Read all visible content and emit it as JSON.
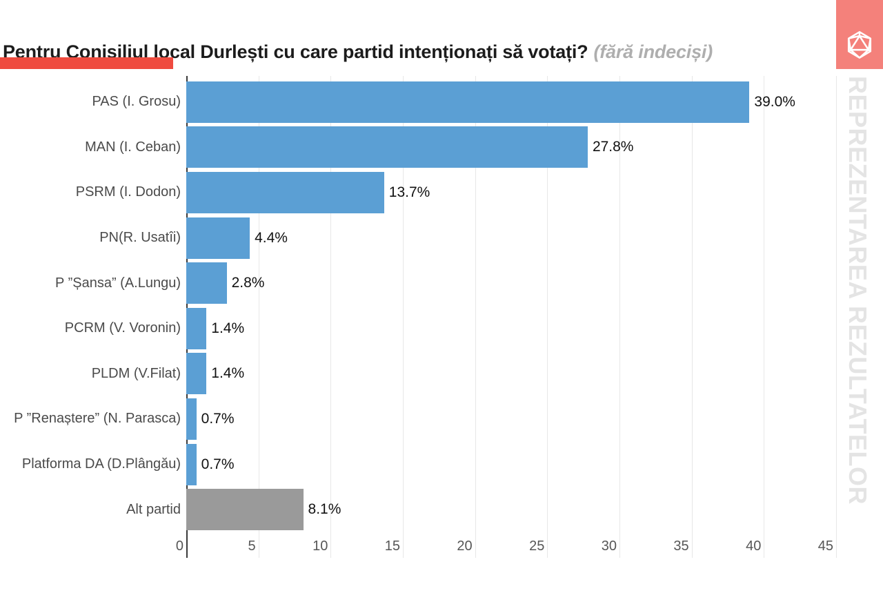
{
  "header": {
    "title": "Pentru Conisiliul local Durlești cu care partid intenționați să votați?",
    "subtitle": "(fără indeciși)",
    "accent_color": "#ef4b3f",
    "logo_color": "#f4817b",
    "logo_icon": "d20-polyhedron-icon"
  },
  "watermark": "REPREZENTAREA REZULTATELOR",
  "chart_data": {
    "type": "bar",
    "orientation": "horizontal",
    "title": "Pentru Conisiliul local Durlești cu care partid intenționați să votați? (fără indeciși)",
    "categories": [
      "PAS (I. Grosu)",
      "MAN (I. Ceban)",
      "PSRM (I. Dodon)",
      "PN(R. Usatîi)",
      "P ”Șansa” (A.Lungu)",
      "PCRM (V. Voronin)",
      "PLDM (V.Filat)",
      "P ”Renaștere” (N. Parasca)",
      "Platforma DA (D.Plângău)",
      "Alt partid"
    ],
    "values": [
      39.0,
      27.8,
      13.7,
      4.4,
      2.8,
      1.4,
      1.4,
      0.7,
      0.7,
      8.1
    ],
    "value_labels": [
      "39.0%",
      "27.8%",
      "13.7%",
      "4.4%",
      "2.8%",
      "1.4%",
      "1.4%",
      "0.7%",
      "0.7%",
      "8.1%"
    ],
    "bar_colors": [
      "#5b9fd4",
      "#5b9fd4",
      "#5b9fd4",
      "#5b9fd4",
      "#5b9fd4",
      "#5b9fd4",
      "#5b9fd4",
      "#5b9fd4",
      "#5b9fd4",
      "#9a9a9a"
    ],
    "xlabel": "",
    "ylabel": "",
    "xlim": [
      0,
      45
    ],
    "xticks": [
      0,
      5,
      10,
      15,
      20,
      25,
      30,
      35,
      40,
      45
    ],
    "grid": true,
    "gridline_color": "#e7e7e7",
    "zeroline_color": "#3a3a3a",
    "legend": false
  }
}
